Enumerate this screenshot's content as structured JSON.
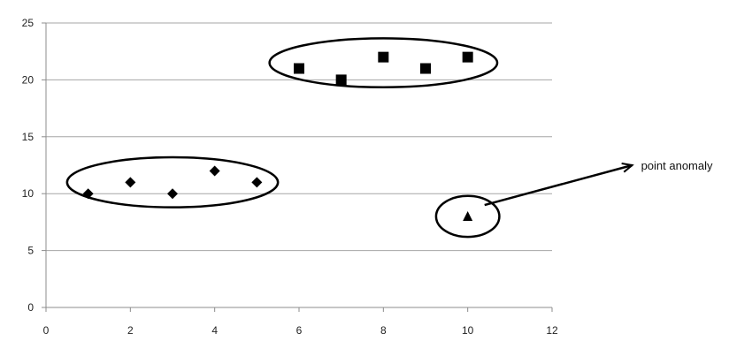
{
  "chart_data": {
    "type": "scatter",
    "title": "",
    "xlabel": "",
    "ylabel": "",
    "xlim": [
      0,
      12
    ],
    "ylim": [
      0,
      25
    ],
    "x_ticks": [
      0,
      2,
      4,
      6,
      8,
      10,
      12
    ],
    "y_ticks": [
      0,
      5,
      10,
      15,
      20,
      25
    ],
    "grid": "horizontal",
    "series": [
      {
        "marker": "diamond",
        "points": [
          {
            "x": 1,
            "y": 10
          },
          {
            "x": 2,
            "y": 11
          },
          {
            "x": 3,
            "y": 10
          },
          {
            "x": 4,
            "y": 12
          },
          {
            "x": 5,
            "y": 11
          }
        ]
      },
      {
        "marker": "square",
        "points": [
          {
            "x": 6,
            "y": 21
          },
          {
            "x": 7,
            "y": 20
          },
          {
            "x": 8,
            "y": 22
          },
          {
            "x": 9,
            "y": 21
          },
          {
            "x": 10,
            "y": 22
          }
        ]
      },
      {
        "marker": "triangle",
        "points": [
          {
            "x": 10,
            "y": 8
          }
        ]
      }
    ],
    "clusters": [
      {
        "shape": "ellipse",
        "center": [
          3,
          11
        ],
        "span_x": 5,
        "span_y": 4.4
      },
      {
        "shape": "ellipse",
        "center": [
          8,
          21.5
        ],
        "span_x": 5.4,
        "span_y": 4.3
      },
      {
        "shape": "ellipse",
        "center": [
          10,
          8
        ],
        "span_x": 1.5,
        "span_y": 3.6
      }
    ],
    "annotations": [
      {
        "text": "point anomaly",
        "arrow_from": [
          10.4,
          9
        ],
        "arrow_to": [
          13.9,
          12.5
        ]
      }
    ],
    "colors": {
      "marker": "#000000",
      "grid": "#a6a6a6",
      "axis": "#8c8c8c",
      "ellipse": "#000000"
    }
  }
}
